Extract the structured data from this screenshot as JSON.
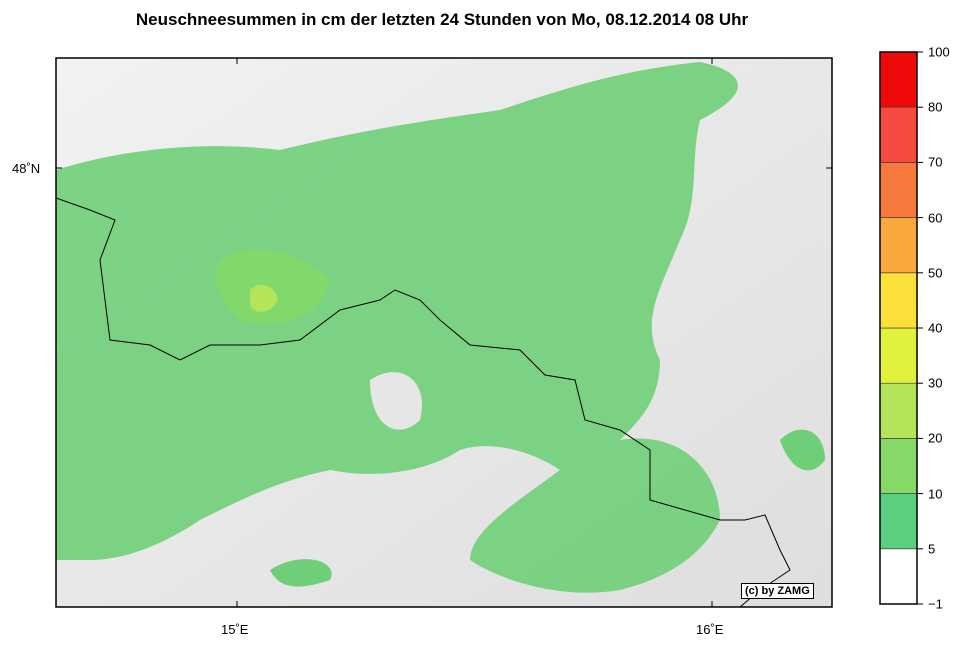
{
  "title": "Neuschneesummen in cm der letzten 24 Stunden von Mo, 08.12.2014 08 Uhr",
  "axes": {
    "lat_labels": [
      "48˚N"
    ],
    "lon_labels": [
      "15˚E",
      "16˚E"
    ]
  },
  "copyright": "(c) by ZAMG",
  "colorbar": {
    "levels": [
      "−1",
      "5",
      "10",
      "20",
      "30",
      "40",
      "50",
      "60",
      "70",
      "80",
      "100"
    ],
    "colors": [
      "#ffffff",
      "#5ad07e",
      "#86d966",
      "#b4e45a",
      "#e2f23c",
      "#fbe03a",
      "#f8a83c",
      "#f77a3c",
      "#f74a40",
      "#ee0a0a"
    ]
  }
}
